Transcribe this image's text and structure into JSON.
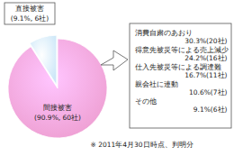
{
  "chart_data": {
    "type": "pie",
    "categories": [
      "直接被害",
      "間接被害"
    ],
    "values": [
      9.1,
      90.9
    ],
    "value_labels": [
      "(9.1%, 6社)",
      "(90.9%, 60社)"
    ],
    "colors": [
      "#cde7f8",
      "#ee9fd2"
    ],
    "data_labels": true,
    "breakdown": {
      "categories": [
        "消費自粛のあおり",
        "得意先被災等による売上減少",
        "仕入先被災等による調達難",
        "親会社に連動",
        "その他"
      ],
      "values": [
        30.3,
        24.2,
        16.7,
        10.6,
        9.1
      ],
      "value_labels": [
        "30.3%(20社)",
        "24.2%(16社)",
        "16.7%(11社)",
        "10.6%(7社)",
        "9.1%(6社)"
      ]
    },
    "annotations": [
      "※ 2011年4月30日時点、判明分"
    ]
  }
}
